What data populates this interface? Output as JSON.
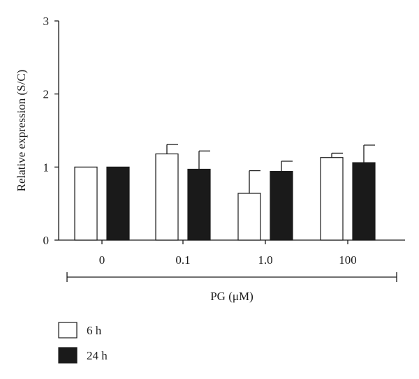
{
  "chart_data": {
    "type": "bar",
    "categories": [
      "0",
      "0.1",
      "1.0",
      "100"
    ],
    "series": [
      {
        "name": "6 h",
        "values": [
          1.0,
          1.18,
          0.64,
          1.13
        ],
        "errors": [
          0,
          0.13,
          0.31,
          0.06
        ],
        "color": "#ffffff",
        "stroke": "#1a1a1a"
      },
      {
        "name": "24 h",
        "values": [
          1.0,
          0.97,
          0.94,
          1.06
        ],
        "errors": [
          0,
          0.25,
          0.14,
          0.24
        ],
        "color": "#1a1a1a",
        "stroke": "#1a1a1a"
      }
    ],
    "ylabel": "Relative expression (S/C)",
    "xlabel": "PG (μM)",
    "ylim": [
      0,
      3
    ],
    "yticks": [
      "0",
      "1",
      "2",
      "3"
    ],
    "grid": false,
    "legend_position": "bottom-left"
  }
}
